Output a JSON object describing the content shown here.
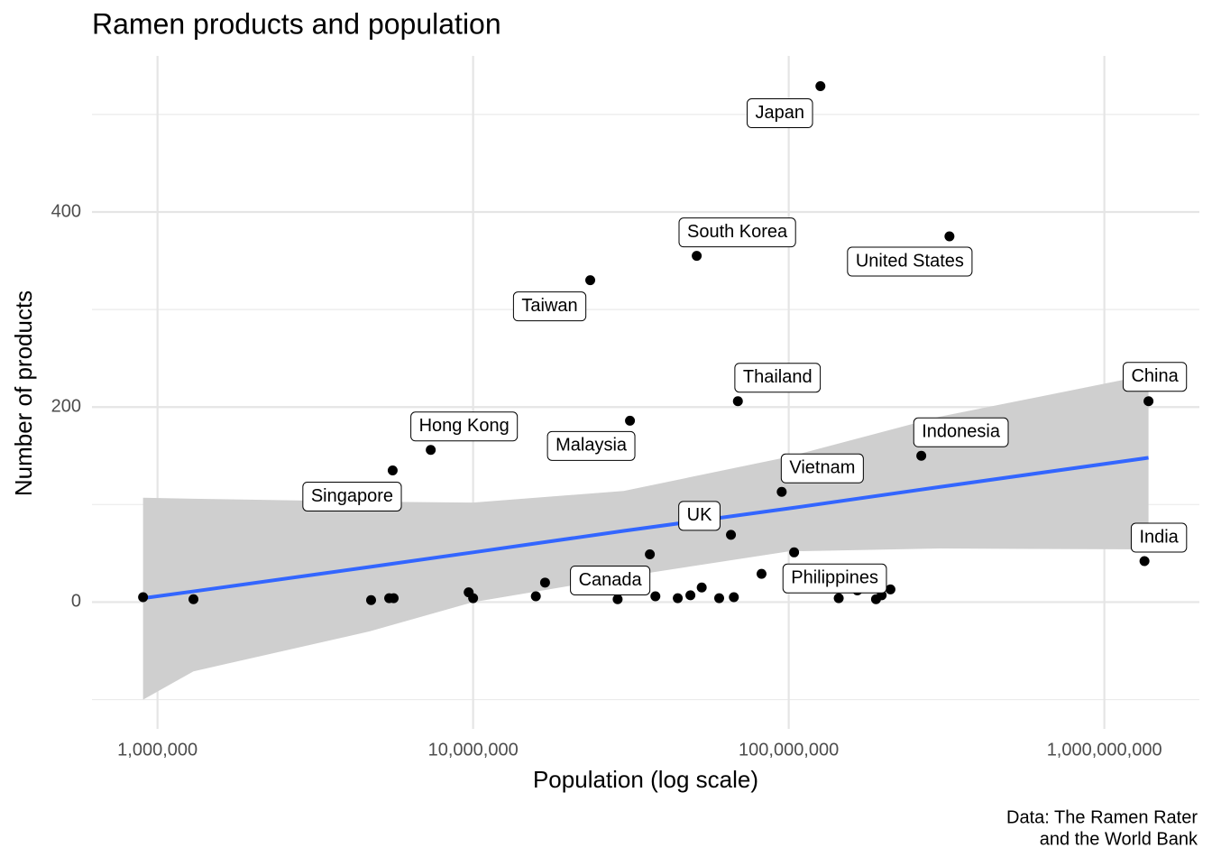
{
  "chart_data": {
    "type": "scatter",
    "title": "Ramen products and population",
    "xlabel": "Population (log scale)",
    "ylabel": "Number of products",
    "caption": [
      "Data: The Ramen Rater",
      "and the World Bank"
    ],
    "x_scale": "log",
    "grid": true,
    "xlim": [
      620000,
      2000000000
    ],
    "ylim": [
      -130,
      560
    ],
    "xticks": [
      {
        "value": 1000000,
        "label": "1,000,000"
      },
      {
        "value": 10000000,
        "label": "10,000,000"
      },
      {
        "value": 100000000,
        "label": "100,000,000"
      },
      {
        "value": 1000000000,
        "label": "1,000,000,000"
      }
    ],
    "yticks": [
      0,
      200,
      400
    ],
    "yminor": [
      -100,
      100,
      300,
      500
    ],
    "color": "#000000",
    "x": [
      900000,
      1300000,
      4750000,
      5420000,
      5600000,
      5560000,
      7340000,
      9680000,
      10000000,
      15800000,
      16900000,
      23500000,
      28700000,
      31400000,
      36300000,
      37800000,
      44500000,
      48800000,
      51100000,
      53000000,
      60200000,
      65600000,
      67000000,
      69000000,
      82000000,
      95000000,
      104000000,
      126000000,
      144000000,
      165000000,
      189000000,
      197000000,
      210000000,
      263000000,
      323000000,
      1340000000,
      1380000000
    ],
    "values": [
      5,
      3,
      2,
      4,
      4,
      135,
      156,
      10,
      4,
      6,
      20,
      330,
      3,
      186,
      49,
      6,
      4,
      7,
      355,
      15,
      4,
      69,
      5,
      206,
      29,
      113,
      51,
      529,
      4,
      12,
      3,
      7,
      13,
      150,
      375,
      42,
      206
    ],
    "labels": [
      null,
      null,
      null,
      null,
      null,
      "Singapore",
      "Hong Kong",
      null,
      null,
      null,
      null,
      "Taiwan",
      null,
      "Malaysia",
      "Canada",
      null,
      null,
      null,
      "South Korea",
      null,
      null,
      "UK",
      null,
      "Thailand",
      null,
      "Vietnam",
      "Philippines",
      "Japan",
      null,
      null,
      null,
      null,
      null,
      "Indonesia",
      "United States",
      "India",
      "China"
    ],
    "smooth": {
      "color": "#3366ff",
      "band_color": "#cfcfcf",
      "x": [
        900000,
        1300000,
        4700000,
        10000000,
        30000000,
        100000000,
        300000000,
        1380000000
      ],
      "values": [
        4,
        11,
        36,
        51,
        73,
        96,
        118,
        148
      ],
      "lower": [
        -100,
        -71,
        -30,
        0,
        26,
        52,
        55,
        54
      ],
      "upper": [
        107,
        106,
        103,
        102,
        114,
        149,
        190,
        233
      ]
    }
  }
}
